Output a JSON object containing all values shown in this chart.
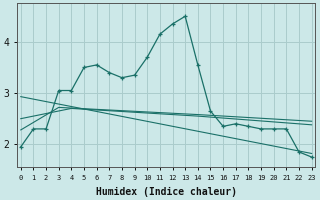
{
  "xlabel": "Humidex (Indice chaleur)",
  "bg_color": "#cce8e8",
  "grid_color": "#aacccc",
  "line_color": "#1a7068",
  "x_ticks": [
    0,
    1,
    2,
    3,
    4,
    5,
    6,
    7,
    8,
    9,
    10,
    11,
    12,
    13,
    14,
    15,
    16,
    17,
    18,
    19,
    20,
    21,
    22,
    23
  ],
  "y_ticks": [
    2,
    3,
    4
  ],
  "ylim": [
    1.55,
    4.75
  ],
  "xlim": [
    -0.3,
    23.3
  ],
  "series1_x": [
    0,
    1,
    2,
    3,
    4,
    5,
    6,
    7,
    8,
    9,
    10,
    11,
    12,
    13,
    14,
    15,
    16,
    17,
    18,
    19,
    20,
    21,
    22,
    23
  ],
  "series1_y": [
    1.95,
    2.3,
    2.3,
    3.05,
    3.05,
    3.5,
    3.55,
    3.4,
    3.3,
    3.35,
    3.7,
    4.15,
    4.35,
    4.5,
    3.55,
    2.65,
    2.35,
    2.4,
    2.35,
    2.3,
    2.3,
    2.3,
    1.85,
    1.75
  ],
  "series2_x": [
    0,
    23
  ],
  "series2_y": [
    2.93,
    1.82
  ],
  "series3_x": [
    0,
    4,
    14,
    23
  ],
  "series3_y": [
    2.5,
    2.7,
    2.55,
    2.38
  ],
  "series4_x": [
    0,
    3,
    14,
    23
  ],
  "series4_y": [
    2.28,
    2.72,
    2.58,
    2.45
  ]
}
